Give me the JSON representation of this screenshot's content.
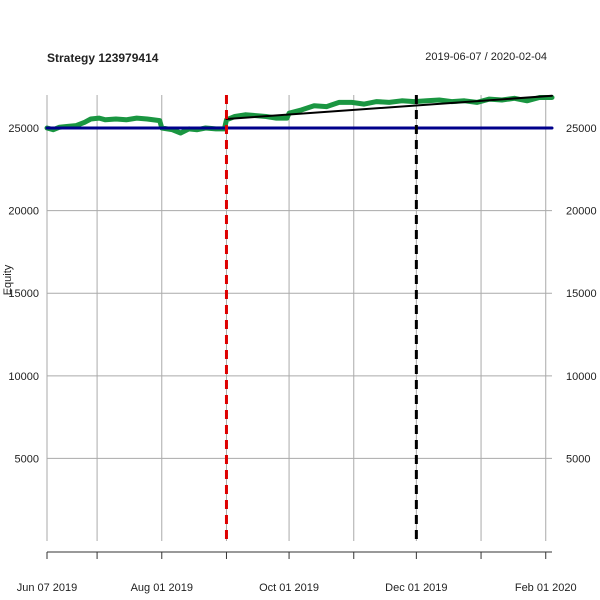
{
  "chart_data": {
    "type": "line",
    "title": "Strategy 123979414",
    "date_range": "2019-06-07 / 2020-02-04",
    "ylabel": "Equity",
    "xlabel": "",
    "x_ticks": [
      "Jun 07 2019",
      "Aug 01 2019",
      "Oct 01 2019",
      "Dec 01 2019",
      "Feb 01 2020"
    ],
    "y_ticks": [
      5000,
      10000,
      15000,
      20000,
      25000
    ],
    "ylim": [
      0,
      27000
    ],
    "xlim": [
      "2019-06-07",
      "2020-02-04"
    ],
    "grid": true,
    "series": [
      {
        "color": "#1a9641",
        "x": [
          "2019-06-07",
          "2019-06-10",
          "2019-06-13",
          "2019-06-17",
          "2019-06-21",
          "2019-06-25",
          "2019-06-28",
          "2019-07-02",
          "2019-07-05",
          "2019-07-10",
          "2019-07-15",
          "2019-07-20",
          "2019-07-25",
          "2019-07-31",
          "2019-08-01",
          "2019-08-06",
          "2019-08-10",
          "2019-08-14",
          "2019-08-18",
          "2019-08-22",
          "2019-08-27",
          "2019-08-31",
          "2019-09-01",
          "2019-09-05",
          "2019-09-10",
          "2019-09-15",
          "2019-09-20",
          "2019-09-25",
          "2019-09-30",
          "2019-10-01",
          "2019-10-07",
          "2019-10-13",
          "2019-10-19",
          "2019-10-25",
          "2019-10-31",
          "2019-11-06",
          "2019-11-12",
          "2019-11-18",
          "2019-11-24",
          "2019-11-30",
          "2019-12-06",
          "2019-12-12",
          "2019-12-18",
          "2019-12-24",
          "2019-12-30",
          "2020-01-05",
          "2020-01-11",
          "2020-01-17",
          "2020-01-23",
          "2020-01-29",
          "2020-02-04"
        ],
        "values": [
          25000,
          24900,
          25050,
          25100,
          25150,
          25350,
          25550,
          25600,
          25500,
          25550,
          25500,
          25600,
          25550,
          25450,
          25000,
          24900,
          24700,
          24950,
          24900,
          25000,
          24950,
          24950,
          25500,
          25700,
          25800,
          25750,
          25700,
          25600,
          25600,
          25900,
          26100,
          26350,
          26300,
          26550,
          26550,
          26450,
          26600,
          26550,
          26650,
          26600,
          26650,
          26700,
          26600,
          26650,
          26550,
          26750,
          26700,
          26800,
          26650,
          26850,
          26850
        ]
      },
      {
        "color": "#00008b",
        "x": [
          "2019-06-07",
          "2020-02-04"
        ],
        "values": [
          25000,
          25000
        ]
      },
      {
        "color": "#000000",
        "x": [
          "2019-09-01",
          "2020-02-04"
        ],
        "values": [
          25550,
          26950
        ]
      }
    ],
    "vlines": [
      {
        "x": "2019-09-01",
        "color": "#dd0000"
      },
      {
        "x": "2019-12-01",
        "color": "#000000"
      }
    ]
  }
}
